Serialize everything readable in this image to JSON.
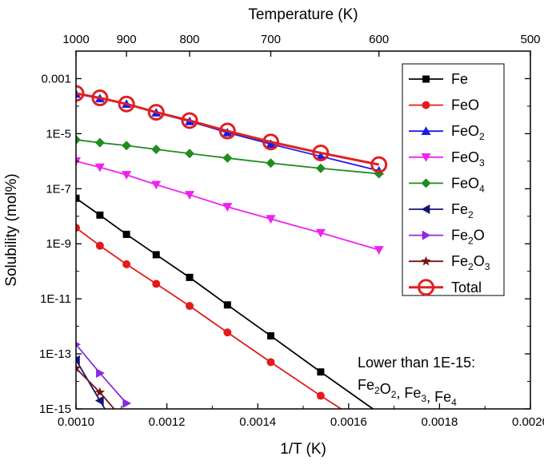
{
  "chart_data": {
    "type": "line",
    "xlabel": "1/T (K)",
    "ylabel": "Solubility (mol%)",
    "top_axis_label": "Temperature (K)",
    "x_scale": "linear",
    "y_scale": "log",
    "xlim": [
      0.001,
      0.002
    ],
    "ylim": [
      1e-15,
      0.01
    ],
    "grid": false,
    "legend_position": "top-right",
    "x_ticks": [
      {
        "value": 0.001,
        "label": "0.0010"
      },
      {
        "value": 0.0012,
        "label": "0.0012"
      },
      {
        "value": 0.0014,
        "label": "0.0014"
      },
      {
        "value": 0.0016,
        "label": "0.0016"
      },
      {
        "value": 0.0018,
        "label": "0.0018"
      },
      {
        "value": 0.002,
        "label": "0.0020"
      }
    ],
    "y_ticks": [
      {
        "value": 0.001,
        "label": "0.001"
      },
      {
        "value": 1e-05,
        "label": "1E-5"
      },
      {
        "value": 1e-07,
        "label": "1E-7"
      },
      {
        "value": 1e-09,
        "label": "1E-9"
      },
      {
        "value": 1e-11,
        "label": "1E-11"
      },
      {
        "value": 1e-13,
        "label": "1E-13"
      },
      {
        "value": 1e-15,
        "label": "1E-15"
      }
    ],
    "top_ticks": [
      {
        "value": 0.001,
        "label": "1000"
      },
      {
        "value": 0.0011111,
        "label": "900"
      },
      {
        "value": 0.00125,
        "label": "800"
      },
      {
        "value": 0.0014286,
        "label": "700"
      },
      {
        "value": 0.0016667,
        "label": "600"
      },
      {
        "value": 0.002,
        "label": "500"
      }
    ],
    "series": [
      {
        "name": "Fe",
        "base": "Fe",
        "sub": "",
        "color": "#000000",
        "marker": "square",
        "x": [
          0.001,
          0.0010526,
          0.0011111,
          0.0011765,
          0.00125,
          0.0013333,
          0.0014286,
          0.0015385,
          0.0016667
        ],
        "y": [
          4.5e-08,
          1.1e-08,
          2.2e-09,
          4e-10,
          6e-11,
          6e-12,
          4.5e-13,
          2.2e-14,
          7e-16
        ]
      },
      {
        "name": "FeO",
        "base": "FeO",
        "sub": "",
        "color": "#e41a1a",
        "marker": "circle",
        "x": [
          0.001,
          0.0010526,
          0.0011111,
          0.0011765,
          0.00125,
          0.0013333,
          0.0014286,
          0.0015385,
          0.0016667
        ],
        "y": [
          3.8e-09,
          8.5e-10,
          1.8e-10,
          3.5e-11,
          5.5e-12,
          6e-13,
          5e-14,
          3e-15,
          1.3e-16
        ]
      },
      {
        "name": "FeO2",
        "base": "FeO",
        "sub": "2",
        "color": "#1a1aee",
        "marker": "triangle-up",
        "x": [
          0.001,
          0.0010526,
          0.0011111,
          0.0011765,
          0.00125,
          0.0013333,
          0.0014286,
          0.0015385,
          0.0016667
        ],
        "y": [
          0.00028,
          0.00019,
          0.00012,
          5.8e-05,
          2.8e-05,
          1.1e-05,
          4.2e-06,
          1.5e-06,
          4.5e-07
        ]
      },
      {
        "name": "FeO3",
        "base": "FeO",
        "sub": "3",
        "color": "#ee22ee",
        "marker": "triangle-down",
        "x": [
          0.001,
          0.0010526,
          0.0011111,
          0.0011765,
          0.00125,
          0.0013333,
          0.0014286,
          0.0015385,
          0.0016667
        ],
        "y": [
          1e-06,
          6e-07,
          3.2e-07,
          1.4e-07,
          6e-08,
          2.2e-08,
          8e-09,
          2.5e-09,
          6e-10
        ]
      },
      {
        "name": "FeO4",
        "base": "FeO",
        "sub": "4",
        "color": "#1e8c1e",
        "marker": "diamond",
        "x": [
          0.001,
          0.0010526,
          0.0011111,
          0.0011765,
          0.00125,
          0.0013333,
          0.0014286,
          0.0015385,
          0.0016667
        ],
        "y": [
          6e-06,
          4.7e-06,
          3.7e-06,
          2.7e-06,
          1.9e-06,
          1.3e-06,
          8.5e-07,
          5.5e-07,
          3.5e-07
        ]
      },
      {
        "name": "Fe2",
        "base": "Fe",
        "sub": "2",
        "color": "#14147a",
        "marker": "triangle-left",
        "x": [
          0.001,
          0.0010526,
          0.0011111
        ],
        "y": [
          6e-14,
          2e-15,
          5e-17
        ]
      },
      {
        "name": "Fe2O",
        "base": "Fe",
        "sub": "2",
        "suffix": "O",
        "color": "#8a2be2",
        "marker": "triangle-right",
        "x": [
          0.001,
          0.0010526,
          0.0011111
        ],
        "y": [
          2.2e-13,
          2e-14,
          1.6e-15
        ]
      },
      {
        "name": "Fe2O3",
        "base": "Fe",
        "sub": "2",
        "suffix": "O",
        "sub2": "3",
        "color": "#7a1414",
        "marker": "star",
        "x": [
          0.001,
          0.0010526,
          0.0011111
        ],
        "y": [
          3e-14,
          4e-15,
          3e-16
        ]
      },
      {
        "name": "Total",
        "base": "Total",
        "sub": "",
        "color": "#e02020",
        "marker": "open-circle",
        "x": [
          0.001,
          0.0010526,
          0.0011111,
          0.0011765,
          0.00125,
          0.0013333,
          0.0014286,
          0.0015385,
          0.0016667
        ],
        "y": [
          0.00029,
          0.0002,
          0.00012,
          6e-05,
          3e-05,
          1.25e-05,
          5e-06,
          2e-06,
          7.5e-07
        ]
      }
    ],
    "annotation": {
      "line1": "Lower than 1E-15:",
      "line2_parts": [
        {
          "t": "Fe",
          "s": "2"
        },
        {
          "t": "O",
          "s": "2"
        },
        {
          "t": ", Fe",
          "s": "3"
        },
        {
          "t": ", Fe",
          "s": "4"
        }
      ]
    }
  }
}
